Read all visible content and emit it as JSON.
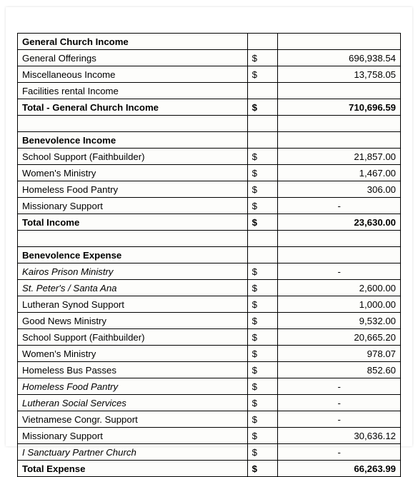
{
  "table": {
    "background_color": "#fdfdfb",
    "border_color": "#000000",
    "font_family": "Arial",
    "font_size_pt": 10,
    "columns": [
      {
        "key": "label",
        "width_pct": 60,
        "align": "left"
      },
      {
        "key": "symbol",
        "width_pct": 8,
        "align": "left"
      },
      {
        "key": "value",
        "width_pct": 32,
        "align": "right"
      }
    ],
    "currency_symbol": "$",
    "dash": "-",
    "rows": [
      {
        "label": "General Church Income",
        "symbol": "",
        "value": "",
        "bold": true
      },
      {
        "label": "General Offerings",
        "symbol": "$",
        "value": "696,938.54"
      },
      {
        "label": "Miscellaneous Income",
        "symbol": "$",
        "value": "13,758.05"
      },
      {
        "label": "Facilities rental Income",
        "symbol": "",
        "value": ""
      },
      {
        "label": "Total  - General Church Income",
        "symbol": "$",
        "value": "710,696.59",
        "bold": true
      },
      {
        "label": "",
        "symbol": "",
        "value": ""
      },
      {
        "label": "Benevolence Income",
        "symbol": "",
        "value": "",
        "bold": true
      },
      {
        "label": "School Support   (Faithbuilder)",
        "symbol": "$",
        "value": "21,857.00"
      },
      {
        "label": "Women's Ministry",
        "symbol": "$",
        "value": "1,467.00"
      },
      {
        "label": "Homeless Food Pantry",
        "symbol": "$",
        "value": "306.00"
      },
      {
        "label": "Missionary Support",
        "symbol": "$",
        "value": "-",
        "dash": true
      },
      {
        "label": "Total Income",
        "symbol": "$",
        "value": "23,630.00",
        "bold": true
      },
      {
        "label": "",
        "symbol": "",
        "value": ""
      },
      {
        "label": "Benevolence Expense",
        "symbol": "",
        "value": "",
        "bold": true
      },
      {
        "label": "Kairos Prison Ministry",
        "symbol": "$",
        "value": "-",
        "italic": true,
        "dash": true
      },
      {
        "label": "St. Peter's  / Santa Ana",
        "symbol": "$",
        "value": "2,600.00",
        "italic": true
      },
      {
        "label": "Lutheran Synod Support",
        "symbol": "$",
        "value": "1,000.00"
      },
      {
        "label": "Good News Ministry",
        "symbol": "$",
        "value": "9,532.00"
      },
      {
        "label": "School Support  (Faithbuilder)",
        "symbol": "$",
        "value": "20,665.20"
      },
      {
        "label": "Women's Ministry",
        "symbol": "$",
        "value": "978.07"
      },
      {
        "label": "Homeless Bus Passes",
        "symbol": "$",
        "value": "852.60"
      },
      {
        "label": "Homeless Food Pantry",
        "symbol": "$",
        "value": "-",
        "italic": true,
        "dash": true
      },
      {
        "label": "Lutheran Social Services",
        "symbol": "$",
        "value": "-",
        "italic": true,
        "dash": true
      },
      {
        "label": "Vietnamese Congr. Support",
        "symbol": "$",
        "value": "-",
        "dash": true
      },
      {
        "label": "Missionary Support",
        "symbol": "$",
        "value": "30,636.12"
      },
      {
        "label": "I Sanctuary Partner Church",
        "symbol": "$",
        "value": "-",
        "italic": true,
        "dash": true
      },
      {
        "label": "Total Expense",
        "symbol": "$",
        "value": "66,263.99",
        "bold": true
      }
    ]
  }
}
